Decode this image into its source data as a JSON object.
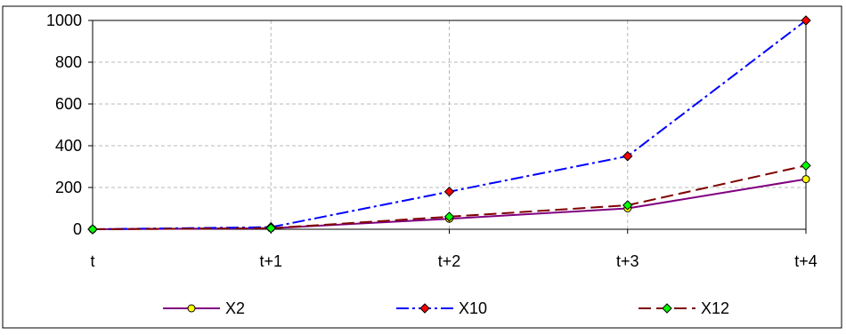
{
  "chart_data": {
    "type": "line",
    "categories": [
      "t",
      "t+1",
      "t+2",
      "t+3",
      "t+4"
    ],
    "ylim": [
      0,
      1000
    ],
    "yticks": [
      "0",
      "200",
      "400",
      "600",
      "800",
      "1000"
    ],
    "grid": true,
    "legend_position": "bottom",
    "series": [
      {
        "name": "X2",
        "values": [
          0,
          5,
          50,
          100,
          240
        ],
        "color": "#800080",
        "marker_fill": "#ffff00",
        "marker": "circle"
      },
      {
        "name": "X10",
        "values": [
          0,
          10,
          180,
          350,
          1000
        ],
        "color": "#0000ff",
        "marker_fill": "#ff0000",
        "marker": "diamond"
      },
      {
        "name": "X12",
        "values": [
          0,
          5,
          60,
          115,
          305
        ],
        "color": "#800000",
        "marker_fill": "#00ff00",
        "marker": "diamond"
      }
    ]
  }
}
